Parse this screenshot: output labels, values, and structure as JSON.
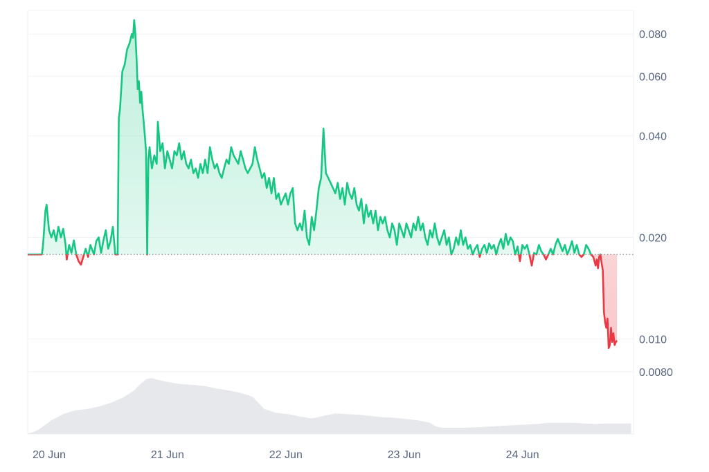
{
  "chart_data": {
    "type": "line",
    "price_scale": "log",
    "y_ticks": [
      "0.080",
      "0.060",
      "0.040",
      "0.020",
      "0.010",
      "0.0080"
    ],
    "x_ticks": [
      "20 Jun",
      "21 Jun",
      "22 Jun",
      "23 Jun",
      "24 Jun"
    ],
    "ylim": [
      0.008,
      0.094
    ],
    "xlim": [
      0,
      5.12
    ],
    "baseline": 0.0178,
    "colors": {
      "up": "#16c784",
      "down": "#ea3943",
      "grid": "#eff2f5",
      "volume": "#e6e8ec",
      "label": "#58667e"
    },
    "price": [
      [
        0.0,
        0.0178
      ],
      [
        0.12,
        0.0178
      ],
      [
        0.13,
        0.019
      ],
      [
        0.15,
        0.024
      ],
      [
        0.16,
        0.025
      ],
      [
        0.18,
        0.021
      ],
      [
        0.2,
        0.02
      ],
      [
        0.22,
        0.021
      ],
      [
        0.24,
        0.0195
      ],
      [
        0.26,
        0.0215
      ],
      [
        0.28,
        0.02
      ],
      [
        0.3,
        0.0212
      ],
      [
        0.32,
        0.019
      ],
      [
        0.33,
        0.0172
      ],
      [
        0.35,
        0.019
      ],
      [
        0.37,
        0.018
      ],
      [
        0.39,
        0.0196
      ],
      [
        0.41,
        0.0178
      ],
      [
        0.43,
        0.017
      ],
      [
        0.45,
        0.0166
      ],
      [
        0.47,
        0.0175
      ],
      [
        0.49,
        0.0185
      ],
      [
        0.51,
        0.0175
      ],
      [
        0.53,
        0.019
      ],
      [
        0.56,
        0.0178
      ],
      [
        0.58,
        0.0195
      ],
      [
        0.6,
        0.02
      ],
      [
        0.62,
        0.018
      ],
      [
        0.64,
        0.0196
      ],
      [
        0.66,
        0.021
      ],
      [
        0.68,
        0.0185
      ],
      [
        0.7,
        0.0195
      ],
      [
        0.72,
        0.0215
      ],
      [
        0.74,
        0.0178
      ],
      [
        0.76,
        0.0178
      ],
      [
        0.77,
        0.045
      ],
      [
        0.78,
        0.048
      ],
      [
        0.8,
        0.062
      ],
      [
        0.82,
        0.065
      ],
      [
        0.84,
        0.072
      ],
      [
        0.86,
        0.075
      ],
      [
        0.88,
        0.08
      ],
      [
        0.89,
        0.078
      ],
      [
        0.9,
        0.088
      ],
      [
        0.91,
        0.08
      ],
      [
        0.92,
        0.068
      ],
      [
        0.93,
        0.055
      ],
      [
        0.94,
        0.058
      ],
      [
        0.95,
        0.05
      ],
      [
        0.96,
        0.054
      ],
      [
        0.97,
        0.048
      ],
      [
        0.98,
        0.044
      ],
      [
        0.99,
        0.04
      ],
      [
        1.0,
        0.036
      ],
      [
        1.01,
        0.0178
      ],
      [
        1.02,
        0.034
      ],
      [
        1.03,
        0.037
      ],
      [
        1.05,
        0.032
      ],
      [
        1.07,
        0.035
      ],
      [
        1.09,
        0.033
      ],
      [
        1.1,
        0.044
      ],
      [
        1.12,
        0.036
      ],
      [
        1.14,
        0.038
      ],
      [
        1.16,
        0.032
      ],
      [
        1.18,
        0.036
      ],
      [
        1.2,
        0.034
      ],
      [
        1.22,
        0.032
      ],
      [
        1.24,
        0.036
      ],
      [
        1.26,
        0.035
      ],
      [
        1.28,
        0.038
      ],
      [
        1.3,
        0.034
      ],
      [
        1.32,
        0.036
      ],
      [
        1.34,
        0.033
      ],
      [
        1.36,
        0.032
      ],
      [
        1.38,
        0.034
      ],
      [
        1.4,
        0.031
      ],
      [
        1.42,
        0.032
      ],
      [
        1.44,
        0.03
      ],
      [
        1.46,
        0.033
      ],
      [
        1.48,
        0.031
      ],
      [
        1.5,
        0.034
      ],
      [
        1.52,
        0.031
      ],
      [
        1.54,
        0.037
      ],
      [
        1.56,
        0.034
      ],
      [
        1.58,
        0.032
      ],
      [
        1.6,
        0.033
      ],
      [
        1.62,
        0.031
      ],
      [
        1.64,
        0.03
      ],
      [
        1.66,
        0.032
      ],
      [
        1.68,
        0.034
      ],
      [
        1.7,
        0.033
      ],
      [
        1.72,
        0.037
      ],
      [
        1.74,
        0.035
      ],
      [
        1.76,
        0.034
      ],
      [
        1.78,
        0.033
      ],
      [
        1.8,
        0.036
      ],
      [
        1.82,
        0.034
      ],
      [
        1.84,
        0.032
      ],
      [
        1.86,
        0.031
      ],
      [
        1.88,
        0.032
      ],
      [
        1.9,
        0.033
      ],
      [
        1.92,
        0.037
      ],
      [
        1.94,
        0.034
      ],
      [
        1.96,
        0.032
      ],
      [
        1.98,
        0.03
      ],
      [
        2.0,
        0.031
      ],
      [
        2.02,
        0.028
      ],
      [
        2.04,
        0.03
      ],
      [
        2.06,
        0.027
      ],
      [
        2.08,
        0.03
      ],
      [
        2.1,
        0.026
      ],
      [
        2.12,
        0.027
      ],
      [
        2.14,
        0.025
      ],
      [
        2.16,
        0.026
      ],
      [
        2.18,
        0.027
      ],
      [
        2.2,
        0.025
      ],
      [
        2.22,
        0.027
      ],
      [
        2.24,
        0.028
      ],
      [
        2.26,
        0.022
      ],
      [
        2.28,
        0.021
      ],
      [
        2.3,
        0.022
      ],
      [
        2.32,
        0.021
      ],
      [
        2.34,
        0.024
      ],
      [
        2.36,
        0.02
      ],
      [
        2.38,
        0.019
      ],
      [
        2.4,
        0.023
      ],
      [
        2.42,
        0.021
      ],
      [
        2.44,
        0.024
      ],
      [
        2.46,
        0.028
      ],
      [
        2.48,
        0.03
      ],
      [
        2.5,
        0.042
      ],
      [
        2.52,
        0.031
      ],
      [
        2.54,
        0.03
      ],
      [
        2.56,
        0.029
      ],
      [
        2.58,
        0.028
      ],
      [
        2.6,
        0.027
      ],
      [
        2.62,
        0.029
      ],
      [
        2.64,
        0.026
      ],
      [
        2.66,
        0.028
      ],
      [
        2.68,
        0.025
      ],
      [
        2.7,
        0.029
      ],
      [
        2.72,
        0.027
      ],
      [
        2.74,
        0.026
      ],
      [
        2.76,
        0.028
      ],
      [
        2.78,
        0.025
      ],
      [
        2.8,
        0.024
      ],
      [
        2.82,
        0.026
      ],
      [
        2.84,
        0.022
      ],
      [
        2.86,
        0.025
      ],
      [
        2.88,
        0.023
      ],
      [
        2.9,
        0.024
      ],
      [
        2.92,
        0.022
      ],
      [
        2.94,
        0.024
      ],
      [
        2.96,
        0.021
      ],
      [
        2.98,
        0.023
      ],
      [
        3.0,
        0.022
      ],
      [
        3.02,
        0.023
      ],
      [
        3.04,
        0.021
      ],
      [
        3.06,
        0.02
      ],
      [
        3.08,
        0.022
      ],
      [
        3.1,
        0.021
      ],
      [
        3.12,
        0.019
      ],
      [
        3.14,
        0.022
      ],
      [
        3.16,
        0.021
      ],
      [
        3.18,
        0.02
      ],
      [
        3.2,
        0.022
      ],
      [
        3.22,
        0.021
      ],
      [
        3.24,
        0.02
      ],
      [
        3.26,
        0.022
      ],
      [
        3.28,
        0.021
      ],
      [
        3.3,
        0.023
      ],
      [
        3.32,
        0.021
      ],
      [
        3.34,
        0.022
      ],
      [
        3.36,
        0.02
      ],
      [
        3.38,
        0.019
      ],
      [
        3.4,
        0.021
      ],
      [
        3.42,
        0.02
      ],
      [
        3.44,
        0.022
      ],
      [
        3.46,
        0.02
      ],
      [
        3.48,
        0.019
      ],
      [
        3.5,
        0.02
      ],
      [
        3.52,
        0.021
      ],
      [
        3.54,
        0.019
      ],
      [
        3.56,
        0.02
      ],
      [
        3.58,
        0.0178
      ],
      [
        3.6,
        0.0185
      ],
      [
        3.62,
        0.02
      ],
      [
        3.64,
        0.019
      ],
      [
        3.66,
        0.021
      ],
      [
        3.68,
        0.019
      ],
      [
        3.7,
        0.02
      ],
      [
        3.72,
        0.0185
      ],
      [
        3.74,
        0.019
      ],
      [
        3.76,
        0.0178
      ],
      [
        3.78,
        0.0185
      ],
      [
        3.8,
        0.019
      ],
      [
        3.82,
        0.0175
      ],
      [
        3.84,
        0.0185
      ],
      [
        3.86,
        0.019
      ],
      [
        3.88,
        0.018
      ],
      [
        3.9,
        0.0192
      ],
      [
        3.92,
        0.0185
      ],
      [
        3.94,
        0.019
      ],
      [
        3.96,
        0.0178
      ],
      [
        3.98,
        0.019
      ],
      [
        4.0,
        0.0198
      ],
      [
        4.02,
        0.0185
      ],
      [
        4.04,
        0.0205
      ],
      [
        4.06,
        0.019
      ],
      [
        4.08,
        0.02
      ],
      [
        4.1,
        0.0195
      ],
      [
        4.12,
        0.0178
      ],
      [
        4.14,
        0.0188
      ],
      [
        4.16,
        0.017
      ],
      [
        4.18,
        0.019
      ],
      [
        4.2,
        0.0185
      ],
      [
        4.22,
        0.019
      ],
      [
        4.24,
        0.0178
      ],
      [
        4.26,
        0.0165
      ],
      [
        4.28,
        0.018
      ],
      [
        4.3,
        0.0178
      ],
      [
        4.32,
        0.019
      ],
      [
        4.34,
        0.0182
      ],
      [
        4.36,
        0.0178
      ],
      [
        4.38,
        0.0172
      ],
      [
        4.4,
        0.0178
      ],
      [
        4.42,
        0.0185
      ],
      [
        4.44,
        0.0178
      ],
      [
        4.46,
        0.019
      ],
      [
        4.48,
        0.0198
      ],
      [
        4.5,
        0.019
      ],
      [
        4.52,
        0.0182
      ],
      [
        4.54,
        0.019
      ],
      [
        4.56,
        0.0178
      ],
      [
        4.58,
        0.0185
      ],
      [
        4.6,
        0.0195
      ],
      [
        4.62,
        0.018
      ],
      [
        4.64,
        0.019
      ],
      [
        4.66,
        0.0178
      ],
      [
        4.68,
        0.0175
      ],
      [
        4.7,
        0.0178
      ],
      [
        4.72,
        0.019
      ],
      [
        4.74,
        0.0185
      ],
      [
        4.76,
        0.0178
      ],
      [
        4.78,
        0.0175
      ],
      [
        4.8,
        0.0165
      ],
      [
        4.81,
        0.0172
      ],
      [
        4.82,
        0.0162
      ],
      [
        4.83,
        0.0175
      ],
      [
        4.84,
        0.0178
      ],
      [
        4.85,
        0.0168
      ],
      [
        4.86,
        0.016
      ],
      [
        4.87,
        0.012
      ],
      [
        4.88,
        0.0112
      ],
      [
        4.89,
        0.0108
      ],
      [
        4.9,
        0.0115
      ],
      [
        4.91,
        0.0094
      ],
      [
        4.92,
        0.0096
      ],
      [
        4.93,
        0.0108
      ],
      [
        4.94,
        0.0098
      ],
      [
        4.95,
        0.0104
      ],
      [
        4.96,
        0.0096
      ],
      [
        4.97,
        0.0098
      ],
      [
        4.98,
        0.0099
      ]
    ],
    "volume": [
      [
        0.0,
        0.01
      ],
      [
        0.05,
        0.03
      ],
      [
        0.1,
        0.08
      ],
      [
        0.2,
        0.22
      ],
      [
        0.3,
        0.32
      ],
      [
        0.4,
        0.38
      ],
      [
        0.5,
        0.4
      ],
      [
        0.6,
        0.44
      ],
      [
        0.7,
        0.5
      ],
      [
        0.8,
        0.58
      ],
      [
        0.9,
        0.7
      ],
      [
        0.95,
        0.8
      ],
      [
        1.0,
        0.88
      ],
      [
        1.05,
        0.9
      ],
      [
        1.1,
        0.87
      ],
      [
        1.2,
        0.83
      ],
      [
        1.3,
        0.8
      ],
      [
        1.4,
        0.79
      ],
      [
        1.5,
        0.77
      ],
      [
        1.6,
        0.73
      ],
      [
        1.7,
        0.7
      ],
      [
        1.8,
        0.66
      ],
      [
        1.9,
        0.6
      ],
      [
        2.0,
        0.4
      ],
      [
        2.1,
        0.34
      ],
      [
        2.2,
        0.32
      ],
      [
        2.3,
        0.28
      ],
      [
        2.4,
        0.25
      ],
      [
        2.5,
        0.29
      ],
      [
        2.6,
        0.33
      ],
      [
        2.7,
        0.32
      ],
      [
        2.8,
        0.31
      ],
      [
        2.9,
        0.29
      ],
      [
        3.0,
        0.27
      ],
      [
        3.1,
        0.26
      ],
      [
        3.2,
        0.24
      ],
      [
        3.3,
        0.22
      ],
      [
        3.4,
        0.18
      ],
      [
        3.45,
        0.12
      ],
      [
        3.5,
        0.1
      ],
      [
        3.6,
        0.1
      ],
      [
        3.7,
        0.1
      ],
      [
        3.8,
        0.11
      ],
      [
        3.9,
        0.12
      ],
      [
        4.0,
        0.13
      ],
      [
        4.1,
        0.14
      ],
      [
        4.2,
        0.15
      ],
      [
        4.3,
        0.16
      ],
      [
        4.4,
        0.18
      ],
      [
        4.5,
        0.18
      ],
      [
        4.6,
        0.18
      ],
      [
        4.7,
        0.17
      ],
      [
        4.8,
        0.16
      ],
      [
        4.9,
        0.17
      ],
      [
        5.0,
        0.17
      ],
      [
        5.1,
        0.17
      ]
    ]
  }
}
